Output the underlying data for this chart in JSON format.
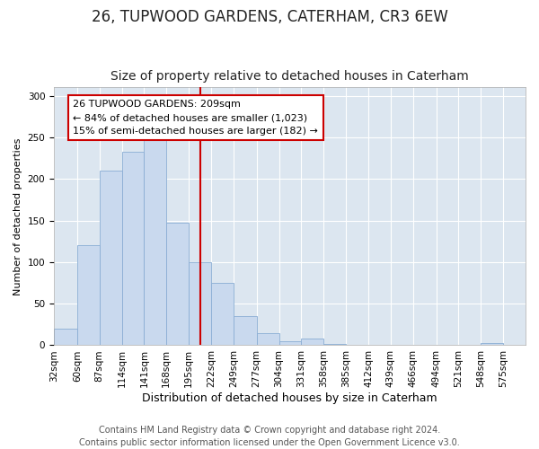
{
  "title1": "26, TUPWOOD GARDENS, CATERHAM, CR3 6EW",
  "title2": "Size of property relative to detached houses in Caterham",
  "xlabel": "Distribution of detached houses by size in Caterham",
  "ylabel": "Number of detached properties",
  "bin_labels": [
    "32sqm",
    "60sqm",
    "87sqm",
    "114sqm",
    "141sqm",
    "168sqm",
    "195sqm",
    "222sqm",
    "249sqm",
    "277sqm",
    "304sqm",
    "331sqm",
    "358sqm",
    "385sqm",
    "412sqm",
    "439sqm",
    "466sqm",
    "494sqm",
    "521sqm",
    "548sqm",
    "575sqm"
  ],
  "bin_edges": [
    32,
    60,
    87,
    114,
    141,
    168,
    195,
    222,
    249,
    277,
    304,
    331,
    358,
    385,
    412,
    439,
    466,
    494,
    521,
    548,
    575,
    602
  ],
  "bar_heights": [
    20,
    120,
    210,
    233,
    248,
    147,
    100,
    75,
    35,
    14,
    5,
    8,
    2,
    0,
    0,
    0,
    0,
    0,
    0,
    3,
    0
  ],
  "bar_color": "#c9d9ee",
  "bar_edge_color": "#8aadd4",
  "vline_x": 209,
  "vline_color": "#cc0000",
  "annotation_text": "26 TUPWOOD GARDENS: 209sqm\n← 84% of detached houses are smaller (1,023)\n15% of semi-detached houses are larger (182) →",
  "annotation_box_facecolor": "#ffffff",
  "annotation_box_edge": "#cc0000",
  "ylim": [
    0,
    310
  ],
  "yticks": [
    0,
    50,
    100,
    150,
    200,
    250,
    300
  ],
  "footer_text": "Contains HM Land Registry data © Crown copyright and database right 2024.\nContains public sector information licensed under the Open Government Licence v3.0.",
  "bg_color": "#ffffff",
  "plot_bg_color": "#dce6f0",
  "title1_fontsize": 12,
  "title2_fontsize": 10,
  "xlabel_fontsize": 9,
  "ylabel_fontsize": 8,
  "footer_fontsize": 7,
  "tick_fontsize": 7.5
}
